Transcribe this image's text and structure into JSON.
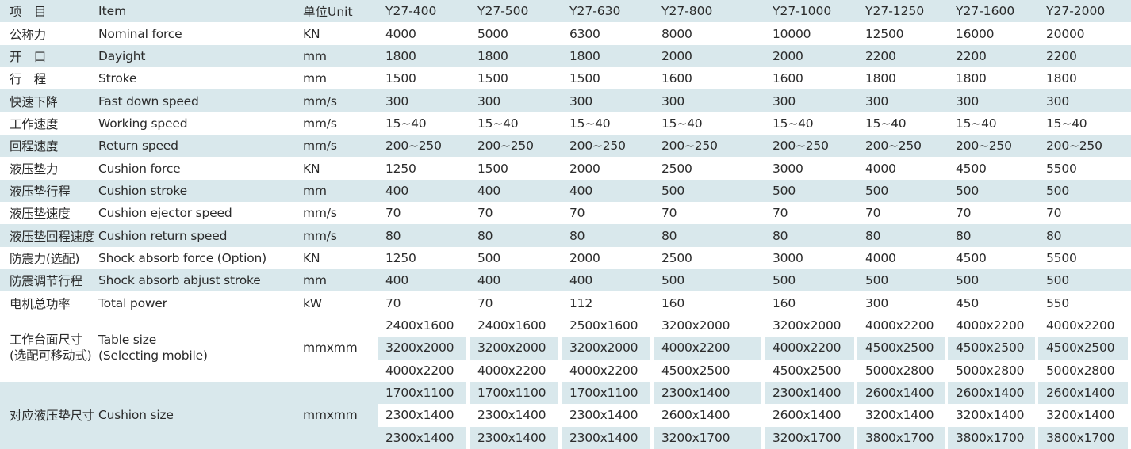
{
  "header": {
    "cn": "项　目",
    "en": "Item",
    "unit": "单位Unit",
    "models": [
      "Y27-400",
      "Y27-500",
      "Y27-630",
      "Y27-800",
      "Y27-1000",
      "Y27-1250",
      "Y27-1600",
      "Y27-2000"
    ]
  },
  "rows": [
    {
      "cn": "公称力",
      "en": "Nominal force",
      "unit": "KN",
      "values": [
        "4000",
        "5000",
        "6300",
        "8000",
        "10000",
        "12500",
        "16000",
        "20000"
      ]
    },
    {
      "cn": "开　口",
      "en": "Dayight",
      "unit": "mm",
      "values": [
        "1800",
        "1800",
        "1800",
        "2000",
        "2000",
        "2200",
        "2200",
        "2200"
      ]
    },
    {
      "cn": "行　程",
      "en": "Stroke",
      "unit": "mm",
      "values": [
        "1500",
        "1500",
        "1500",
        "1600",
        "1600",
        "1800",
        "1800",
        "1800"
      ]
    },
    {
      "cn": "快速下降",
      "en": "Fast down speed",
      "unit": "mm/s",
      "values": [
        "300",
        "300",
        "300",
        "300",
        "300",
        "300",
        "300",
        "300"
      ]
    },
    {
      "cn": "工作速度",
      "en": "Working speed",
      "unit": "mm/s",
      "values": [
        "15~40",
        "15~40",
        "15~40",
        "15~40",
        "15~40",
        "15~40",
        "15~40",
        "15~40"
      ]
    },
    {
      "cn": "回程速度",
      "en": "Return speed",
      "unit": "mm/s",
      "values": [
        "200~250",
        "200~250",
        "200~250",
        "200~250",
        "200~250",
        "200~250",
        "200~250",
        "200~250"
      ]
    },
    {
      "cn": "液压垫力",
      "en": "Cushion force",
      "unit": "KN",
      "values": [
        "1250",
        "1500",
        "2000",
        "2500",
        "3000",
        "4000",
        "4500",
        "5500"
      ]
    },
    {
      "cn": "液压垫行程",
      "en": "Cushion stroke",
      "unit": "mm",
      "values": [
        "400",
        "400",
        "400",
        "500",
        "500",
        "500",
        "500",
        "500"
      ]
    },
    {
      "cn": "液压垫速度",
      "en": "Cushion ejector speed",
      "unit": "mm/s",
      "values": [
        "70",
        "70",
        "70",
        "70",
        "70",
        "70",
        "70",
        "70"
      ]
    },
    {
      "cn": "液压垫回程速度",
      "en": "Cushion return speed",
      "unit": "mm/s",
      "values": [
        "80",
        "80",
        "80",
        "80",
        "80",
        "80",
        "80",
        "80"
      ]
    },
    {
      "cn": "防震力(选配)",
      "en": "Shock absorb force (Option)",
      "unit": "KN",
      "values": [
        "1250",
        "500",
        "2000",
        "2500",
        "3000",
        "4000",
        "4500",
        "5500"
      ]
    },
    {
      "cn": "防震调节行程",
      "en": "Shock absorb abjust stroke",
      "unit": "mm",
      "values": [
        "400",
        "400",
        "400",
        "500",
        "500",
        "500",
        "500",
        "500"
      ]
    },
    {
      "cn": "电机总功率",
      "en": "Total power",
      "unit": "kW",
      "values": [
        "70",
        "70",
        "112",
        "160",
        "160",
        "300",
        "450",
        "550"
      ]
    }
  ],
  "table_size": {
    "cn_line1": "工作台面尺寸",
    "cn_line2": "(选配可移动式)",
    "en_line1": "Table size",
    "en_line2": "(Selecting mobile)",
    "unit": "mmxmm",
    "lines": [
      [
        "2400x1600",
        "2400x1600",
        "2500x1600",
        "3200x2000",
        "3200x2000",
        "4000x2200",
        "4000x2200",
        "4000x2200"
      ],
      [
        "3200x2000",
        "3200x2000",
        "3200x2000",
        "4000x2200",
        "4000x2200",
        "4500x2500",
        "4500x2500",
        "4500x2500"
      ],
      [
        "4000x2200",
        "4000x2200",
        "4000x2200",
        "4500x2500",
        "4500x2500",
        "5000x2800",
        "5000x2800",
        "5000x2800"
      ]
    ]
  },
  "cushion_size": {
    "cn": "对应液压垫尺寸",
    "en": "Cushion size",
    "unit": "mmxmm",
    "lines": [
      [
        "1700x1100",
        "1700x1100",
        "1700x1100",
        "2300x1400",
        "2300x1400",
        "2600x1400",
        "2600x1400",
        "2600x1400"
      ],
      [
        "2300x1400",
        "2300x1400",
        "2300x1400",
        "2600x1400",
        "2600x1400",
        "3200x1400",
        "3200x1400",
        "3200x1400"
      ],
      [
        "2300x1400",
        "2300x1400",
        "2300x1400",
        "3200x1700",
        "3200x1700",
        "3800x1700",
        "3800x1700",
        "3800x1700"
      ]
    ]
  },
  "colors": {
    "shade": "#d9e8ec",
    "text": "#2b2b2b",
    "background": "#ffffff"
  }
}
